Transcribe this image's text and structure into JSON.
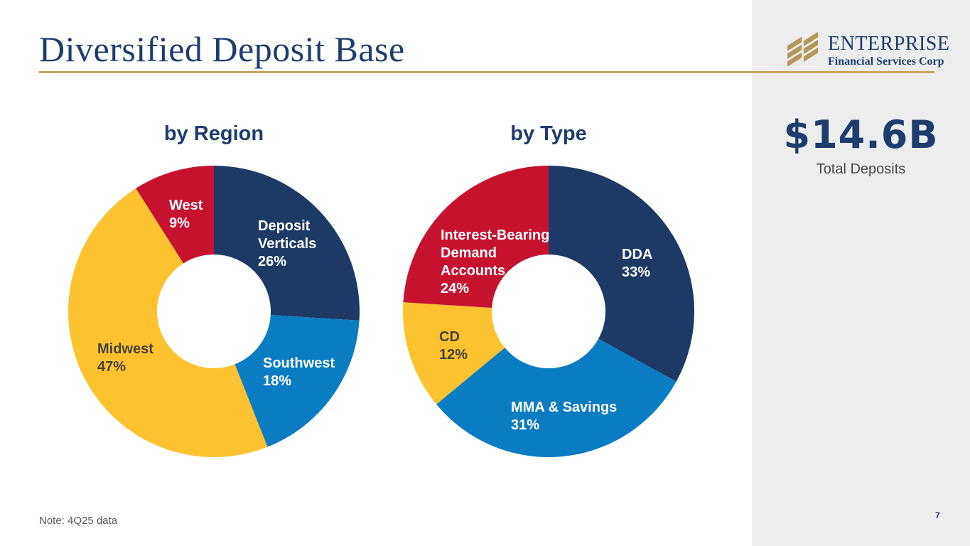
{
  "slide": {
    "title": "Diversified Deposit Base",
    "note": "Note: 4Q25 data",
    "page_number": "7"
  },
  "logo": {
    "name": "ENTERPRISE",
    "tagline": "Financial Services Corp"
  },
  "callout": {
    "value": "$14.6B",
    "label": "Total Deposits"
  },
  "colors": {
    "navy": "#1d3a66",
    "blue": "#0a7cc2",
    "yellow": "#fdc230",
    "red": "#c5122f",
    "gold_rule": "#c8a45c",
    "logo_gold": "#b49759",
    "panel_gray": "#ededed",
    "text_navy": "#1e3c6e",
    "dark_slice_label": "#47423a"
  },
  "chart_data": [
    {
      "type": "pie",
      "donut": true,
      "title": "by Region",
      "start_angle_deg": 0,
      "direction": "clockwise",
      "slices": [
        {
          "label": "Deposit Verticals",
          "label_lines": [
            "Deposit",
            "Verticals"
          ],
          "value": 26,
          "pct": "26%",
          "color": "#1d3a66",
          "text_color": "#ffffff"
        },
        {
          "label": "Southwest",
          "label_lines": [
            "Southwest"
          ],
          "value": 18,
          "pct": "18%",
          "color": "#0a7cc2",
          "text_color": "#ffffff"
        },
        {
          "label": "Midwest",
          "label_lines": [
            "Midwest"
          ],
          "value": 47,
          "pct": "47%",
          "color": "#fdc230",
          "text_color": "#47423a"
        },
        {
          "label": "West",
          "label_lines": [
            "West"
          ],
          "value": 9,
          "pct": "9%",
          "color": "#c5122f",
          "text_color": "#ffffff"
        }
      ]
    },
    {
      "type": "pie",
      "donut": true,
      "title": "by Type",
      "start_angle_deg": 0,
      "direction": "clockwise",
      "slices": [
        {
          "label": "DDA",
          "label_lines": [
            "DDA"
          ],
          "value": 33,
          "pct": "33%",
          "color": "#1d3a66",
          "text_color": "#ffffff"
        },
        {
          "label": "MMA & Savings",
          "label_lines": [
            "MMA & Savings"
          ],
          "value": 31,
          "pct": "31%",
          "color": "#0a7cc2",
          "text_color": "#ffffff"
        },
        {
          "label": "CD",
          "label_lines": [
            "CD"
          ],
          "value": 12,
          "pct": "12%",
          "color": "#fdc230",
          "text_color": "#47423a"
        },
        {
          "label": "Interest-Bearing Demand Accounts",
          "label_lines": [
            "Interest-Bearing",
            "Demand",
            "Accounts"
          ],
          "value": 24,
          "pct": "24%",
          "color": "#c5122f",
          "text_color": "#ffffff"
        }
      ]
    }
  ]
}
